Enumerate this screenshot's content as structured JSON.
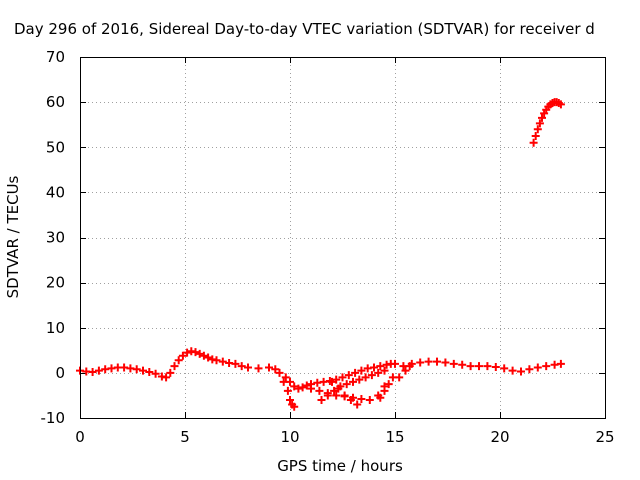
{
  "chart_data": {
    "type": "scatter",
    "title": "Day 296 of 2016, Sidereal Day-to-day VTEC variation (SDTVAR) for receiver d",
    "xlabel": "GPS time / hours",
    "ylabel": "SDTVAR / TECUs",
    "xlim": [
      0,
      25
    ],
    "ylim": [
      -10,
      70
    ],
    "xticks": [
      0,
      5,
      10,
      15,
      20,
      25
    ],
    "yticks": [
      -10,
      0,
      10,
      20,
      30,
      40,
      50,
      60,
      70
    ],
    "grid": true,
    "legend": "none",
    "marker": "plus",
    "series_color": "#ff0000",
    "series": [
      {
        "x": [
          0.0,
          0.3,
          0.6,
          0.9,
          1.2,
          1.5,
          1.8,
          2.1,
          2.4,
          2.7,
          3.0,
          3.3,
          3.6,
          3.9,
          4.1,
          4.3,
          4.5,
          4.7,
          4.9,
          5.1,
          5.3,
          5.5,
          5.7,
          5.9,
          6.1,
          6.3,
          6.5,
          6.8,
          7.1,
          7.4,
          7.7,
          8.0,
          8.5,
          9.0,
          9.3,
          9.5,
          9.7,
          9.9,
          10.0,
          10.1,
          10.2
        ],
        "y": [
          0.5,
          0.3,
          0.2,
          0.5,
          0.8,
          1.0,
          1.2,
          1.2,
          1.0,
          0.8,
          0.5,
          0.2,
          -0.2,
          -0.8,
          -1.0,
          0.0,
          1.5,
          2.8,
          3.8,
          4.5,
          4.8,
          4.6,
          4.2,
          3.8,
          3.4,
          3.0,
          2.8,
          2.5,
          2.2,
          2.0,
          1.5,
          1.2,
          1.0,
          1.2,
          0.8,
          0.0,
          -2.0,
          -4.0,
          -6.0,
          -7.0,
          -7.5
        ]
      },
      {
        "x": [
          9.8,
          10.0,
          10.2,
          10.4,
          10.6,
          10.8,
          11.0,
          11.3,
          11.6,
          11.9,
          12.2,
          12.5,
          12.8,
          13.1,
          13.4,
          13.7,
          14.0,
          14.3,
          14.6,
          14.8
        ],
        "y": [
          -1.0,
          -2.0,
          -3.0,
          -3.5,
          -3.2,
          -2.8,
          -2.5,
          -2.2,
          -2.0,
          -1.8,
          -1.5,
          -1.0,
          -0.5,
          0.0,
          0.5,
          1.0,
          1.2,
          1.5,
          1.8,
          2.0
        ]
      },
      {
        "x": [
          11.0,
          11.4,
          11.8,
          12.2,
          12.6,
          13.0,
          13.4,
          13.8,
          14.2,
          14.5
        ],
        "y": [
          -3.5,
          -4.0,
          -4.5,
          -5.0,
          -5.2,
          -5.5,
          -5.8,
          -6.0,
          -5.0,
          -3.0
        ]
      },
      {
        "x": [
          11.5,
          11.8,
          12.1,
          12.4,
          12.7,
          13.0,
          13.3,
          13.6,
          13.9,
          14.2,
          14.5
        ],
        "y": [
          -6.0,
          -5.0,
          -4.0,
          -3.0,
          -2.5,
          -2.0,
          -1.5,
          -1.0,
          -0.5,
          0.0,
          0.5
        ]
      },
      {
        "x": [
          12.0,
          12.3,
          12.6,
          12.9,
          13.2
        ],
        "y": [
          -2.0,
          -3.5,
          -5.0,
          -6.0,
          -7.0
        ]
      },
      {
        "x": [
          14.3,
          14.5,
          14.7,
          14.9
        ],
        "y": [
          -5.5,
          -4.0,
          -2.5,
          -1.0
        ]
      },
      {
        "x": [
          15.2,
          15.5,
          15.7
        ],
        "y": [
          -1.0,
          0.5,
          1.5
        ]
      },
      {
        "x": [
          15.0,
          15.4,
          15.8,
          16.2,
          16.6,
          17.0,
          17.4,
          17.8,
          18.2,
          18.6,
          19.0,
          19.4,
          19.8,
          20.2,
          20.6,
          21.0,
          21.4,
          21.8,
          22.2,
          22.6,
          22.9
        ],
        "y": [
          2.0,
          1.5,
          2.0,
          2.3,
          2.5,
          2.5,
          2.3,
          2.0,
          1.8,
          1.5,
          1.5,
          1.5,
          1.3,
          1.0,
          0.5,
          0.3,
          0.8,
          1.2,
          1.5,
          1.8,
          2.0
        ]
      },
      {
        "x": [
          21.6,
          21.7,
          21.8,
          21.9,
          22.0,
          22.1,
          22.2,
          22.3,
          22.4,
          22.5,
          22.6,
          22.7,
          22.8,
          22.9
        ],
        "y": [
          51.0,
          52.5,
          54.0,
          55.3,
          56.5,
          57.5,
          58.3,
          59.0,
          59.5,
          59.8,
          60.0,
          60.0,
          59.8,
          59.5
        ]
      }
    ]
  }
}
